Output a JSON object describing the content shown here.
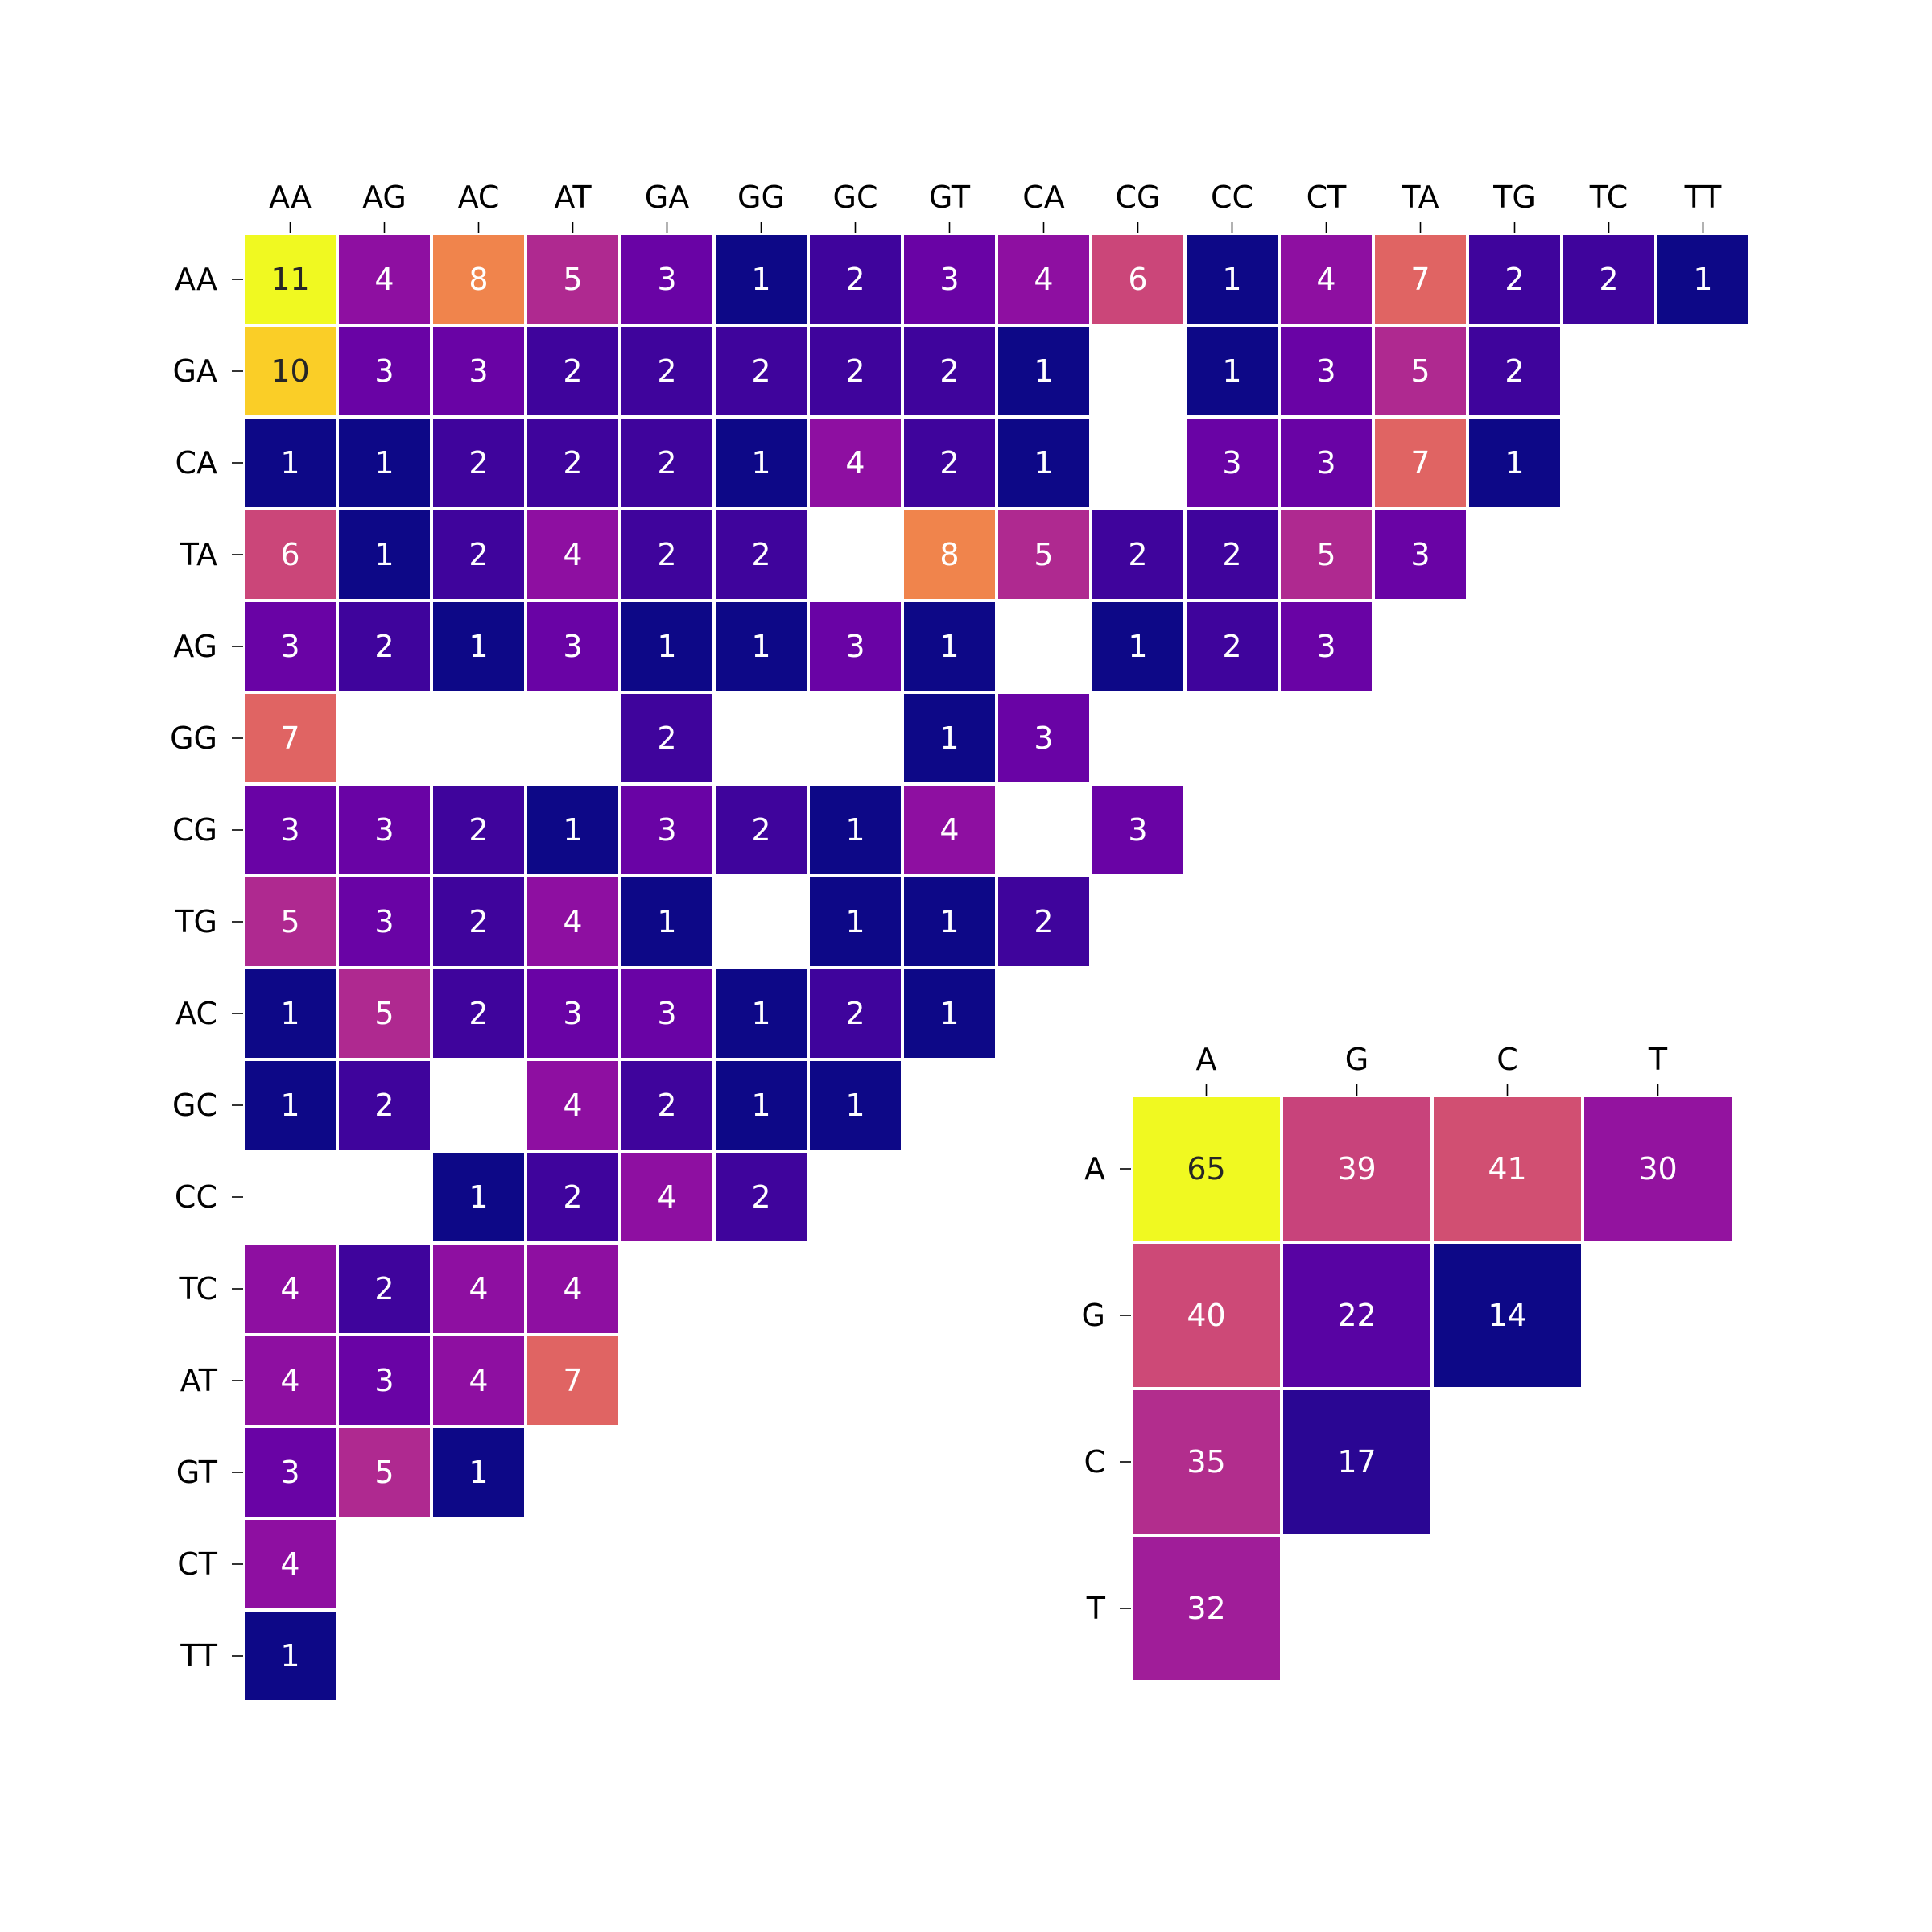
{
  "chart_data": [
    {
      "type": "heatmap",
      "colormap": "plasma",
      "cell_edge_color": "#ffffff",
      "value_range": [
        1,
        11
      ],
      "x_ticks_position": "top",
      "x_labels": [
        "AA",
        "AG",
        "AC",
        "AT",
        "GA",
        "GG",
        "GC",
        "GT",
        "CA",
        "CG",
        "CC",
        "CT",
        "TA",
        "TG",
        "TC",
        "TT"
      ],
      "y_labels": [
        "AA",
        "GA",
        "CA",
        "TA",
        "AG",
        "GG",
        "CG",
        "TG",
        "AC",
        "GC",
        "CC",
        "TC",
        "AT",
        "GT",
        "CT",
        "TT"
      ],
      "values": [
        [
          11,
          4,
          8,
          5,
          3,
          1,
          2,
          3,
          4,
          6,
          1,
          4,
          7,
          2,
          2,
          1
        ],
        [
          10,
          3,
          3,
          2,
          2,
          2,
          2,
          2,
          1,
          null,
          1,
          3,
          5,
          2,
          null,
          null
        ],
        [
          1,
          1,
          2,
          2,
          2,
          1,
          4,
          2,
          1,
          null,
          3,
          3,
          7,
          1,
          null,
          null
        ],
        [
          6,
          1,
          2,
          4,
          2,
          2,
          null,
          8,
          5,
          2,
          2,
          5,
          3,
          null,
          null,
          null
        ],
        [
          3,
          2,
          1,
          3,
          1,
          1,
          3,
          1,
          null,
          1,
          2,
          3,
          null,
          null,
          null,
          null
        ],
        [
          7,
          null,
          null,
          null,
          2,
          null,
          null,
          1,
          3,
          null,
          null,
          null,
          null,
          null,
          null,
          null
        ],
        [
          3,
          3,
          2,
          1,
          3,
          2,
          1,
          4,
          null,
          3,
          null,
          null,
          null,
          null,
          null,
          null
        ],
        [
          5,
          3,
          2,
          4,
          1,
          null,
          1,
          1,
          2,
          null,
          null,
          null,
          null,
          null,
          null,
          null
        ],
        [
          1,
          5,
          2,
          3,
          3,
          1,
          2,
          1,
          null,
          null,
          null,
          null,
          null,
          null,
          null,
          null
        ],
        [
          1,
          2,
          null,
          4,
          2,
          1,
          1,
          null,
          null,
          null,
          null,
          null,
          null,
          null,
          null,
          null
        ],
        [
          null,
          null,
          1,
          2,
          4,
          2,
          null,
          null,
          null,
          null,
          null,
          null,
          null,
          null,
          null,
          null
        ],
        [
          4,
          2,
          4,
          4,
          null,
          null,
          null,
          null,
          null,
          null,
          null,
          null,
          null,
          null,
          null,
          null
        ],
        [
          4,
          3,
          4,
          7,
          null,
          null,
          null,
          null,
          null,
          null,
          null,
          null,
          null,
          null,
          null,
          null
        ],
        [
          3,
          5,
          1,
          null,
          null,
          null,
          null,
          null,
          null,
          null,
          null,
          null,
          null,
          null,
          null,
          null
        ],
        [
          4,
          null,
          null,
          null,
          null,
          null,
          null,
          null,
          null,
          null,
          null,
          null,
          null,
          null,
          null,
          null
        ],
        [
          1,
          null,
          null,
          null,
          null,
          null,
          null,
          null,
          null,
          null,
          null,
          null,
          null,
          null,
          null,
          null
        ]
      ]
    },
    {
      "type": "heatmap",
      "colormap": "plasma",
      "cell_edge_color": "#ffffff",
      "value_range": [
        14,
        65
      ],
      "x_ticks_position": "top",
      "x_labels": [
        "A",
        "G",
        "C",
        "T"
      ],
      "y_labels": [
        "A",
        "G",
        "C",
        "T"
      ],
      "values": [
        [
          65,
          39,
          41,
          30
        ],
        [
          40,
          22,
          14,
          null
        ],
        [
          35,
          17,
          null,
          null
        ],
        [
          32,
          null,
          null,
          null
        ]
      ]
    }
  ]
}
